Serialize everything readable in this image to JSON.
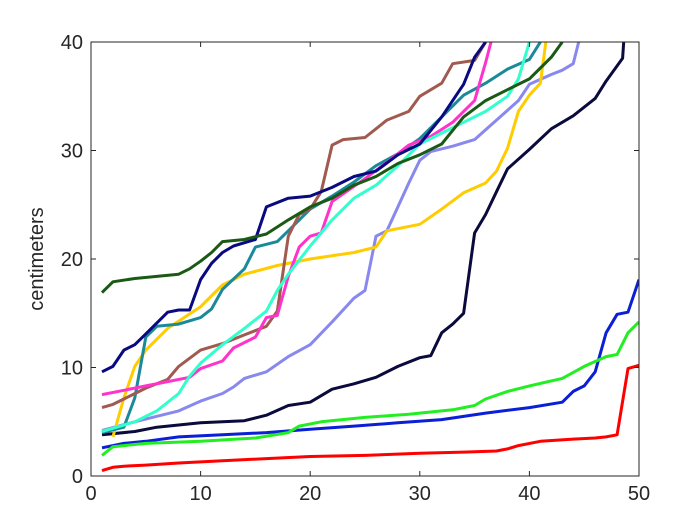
{
  "chart_data": {
    "type": "line",
    "title": "",
    "xlabel": "",
    "ylabel": "centimeters",
    "xlim": [
      0,
      50
    ],
    "ylim": [
      0,
      40
    ],
    "xticks": [
      0,
      10,
      20,
      30,
      40,
      50
    ],
    "yticks": [
      0,
      10,
      20,
      30,
      40
    ],
    "grid": false,
    "series": [
      {
        "color": "#ff0000",
        "points": [
          [
            1,
            0.5
          ],
          [
            2,
            0.8
          ],
          [
            3,
            0.9
          ],
          [
            5,
            1.0
          ],
          [
            8,
            1.2
          ],
          [
            12,
            1.4
          ],
          [
            16,
            1.6
          ],
          [
            20,
            1.8
          ],
          [
            25,
            1.9
          ],
          [
            30,
            2.1
          ],
          [
            34,
            2.2
          ],
          [
            37,
            2.3
          ],
          [
            38,
            2.5
          ],
          [
            39,
            2.8
          ],
          [
            41,
            3.2
          ],
          [
            44,
            3.4
          ],
          [
            46,
            3.5
          ],
          [
            47,
            3.6
          ],
          [
            48,
            3.8
          ],
          [
            49,
            9.9
          ],
          [
            50,
            10.2
          ]
        ]
      },
      {
        "color": "#0a1fd6",
        "points": [
          [
            1,
            2.6
          ],
          [
            3,
            3.0
          ],
          [
            5,
            3.2
          ],
          [
            8,
            3.6
          ],
          [
            12,
            3.8
          ],
          [
            16,
            4.0
          ],
          [
            20,
            4.3
          ],
          [
            24,
            4.6
          ],
          [
            28,
            4.9
          ],
          [
            32,
            5.2
          ],
          [
            36,
            5.8
          ],
          [
            40,
            6.3
          ],
          [
            43,
            6.8
          ],
          [
            44,
            7.8
          ],
          [
            45,
            8.3
          ],
          [
            46,
            9.6
          ],
          [
            47,
            13.2
          ],
          [
            48,
            14.9
          ],
          [
            49,
            15.1
          ],
          [
            50,
            18.1
          ]
        ]
      },
      {
        "color": "#22ee22",
        "points": [
          [
            1,
            1.9
          ],
          [
            2,
            2.7
          ],
          [
            5,
            3.0
          ],
          [
            10,
            3.2
          ],
          [
            15,
            3.5
          ],
          [
            18,
            4.0
          ],
          [
            19,
            4.6
          ],
          [
            21,
            5.0
          ],
          [
            25,
            5.4
          ],
          [
            29,
            5.7
          ],
          [
            33,
            6.1
          ],
          [
            35,
            6.5
          ],
          [
            36,
            7.1
          ],
          [
            38,
            7.8
          ],
          [
            40,
            8.3
          ],
          [
            43,
            9.0
          ],
          [
            45,
            10.1
          ],
          [
            47,
            11.0
          ],
          [
            48,
            11.2
          ],
          [
            49,
            13.2
          ],
          [
            50,
            14.2
          ]
        ]
      },
      {
        "color": "#0a0a3c",
        "points": [
          [
            1,
            3.8
          ],
          [
            4,
            4.1
          ],
          [
            6,
            4.5
          ],
          [
            10,
            4.9
          ],
          [
            14,
            5.1
          ],
          [
            16,
            5.6
          ],
          [
            18,
            6.5
          ],
          [
            20,
            6.8
          ],
          [
            22,
            8.0
          ],
          [
            24,
            8.5
          ],
          [
            26,
            9.1
          ],
          [
            28,
            10.1
          ],
          [
            30,
            10.9
          ],
          [
            31,
            11.1
          ],
          [
            32,
            13.2
          ],
          [
            33,
            14.0
          ],
          [
            34,
            15.0
          ],
          [
            35,
            22.4
          ],
          [
            36,
            24.1
          ],
          [
            37,
            26.2
          ],
          [
            38,
            28.3
          ],
          [
            40,
            30.1
          ],
          [
            42,
            32.0
          ],
          [
            44,
            33.2
          ],
          [
            46,
            34.8
          ],
          [
            47,
            36.4
          ],
          [
            48,
            37.8
          ],
          [
            48.5,
            38.5
          ],
          [
            48.6,
            40
          ]
        ]
      },
      {
        "color": "#8888ee",
        "points": [
          [
            1,
            4.2
          ],
          [
            4,
            5.0
          ],
          [
            6,
            5.5
          ],
          [
            8,
            6.0
          ],
          [
            10,
            6.9
          ],
          [
            12,
            7.6
          ],
          [
            13,
            8.2
          ],
          [
            14,
            9.0
          ],
          [
            16,
            9.6
          ],
          [
            18,
            11.0
          ],
          [
            20,
            12.1
          ],
          [
            22,
            14.2
          ],
          [
            24,
            16.4
          ],
          [
            25,
            17.1
          ],
          [
            26,
            22.1
          ],
          [
            27,
            22.6
          ],
          [
            28,
            24.8
          ],
          [
            29,
            27.0
          ],
          [
            30,
            29.1
          ],
          [
            31,
            29.9
          ],
          [
            33,
            30.4
          ],
          [
            35,
            31.0
          ],
          [
            37,
            32.8
          ],
          [
            39,
            34.6
          ],
          [
            40,
            36.1
          ],
          [
            42,
            37.0
          ],
          [
            43,
            37.4
          ],
          [
            44,
            38.0
          ],
          [
            44.5,
            40
          ]
        ]
      },
      {
        "color": "#ffcc00",
        "points": [
          [
            2,
            3.6
          ],
          [
            3,
            7.2
          ],
          [
            4,
            10.1
          ],
          [
            5,
            11.6
          ],
          [
            7,
            13.6
          ],
          [
            10,
            15.6
          ],
          [
            12,
            17.6
          ],
          [
            14,
            18.6
          ],
          [
            17,
            19.4
          ],
          [
            20,
            20.0
          ],
          [
            24,
            20.6
          ],
          [
            26,
            21.1
          ],
          [
            27,
            22.6
          ],
          [
            30,
            23.2
          ],
          [
            32,
            24.6
          ],
          [
            34,
            26.1
          ],
          [
            36,
            27.0
          ],
          [
            37,
            28.1
          ],
          [
            38,
            30.2
          ],
          [
            39,
            33.6
          ],
          [
            40,
            35.1
          ],
          [
            41,
            36.2
          ],
          [
            41.5,
            40
          ]
        ]
      },
      {
        "color": "#1a8a9a",
        "points": [
          [
            1,
            4.0
          ],
          [
            3,
            4.5
          ],
          [
            4,
            7.2
          ],
          [
            5,
            12.8
          ],
          [
            6,
            13.8
          ],
          [
            8,
            14.0
          ],
          [
            10,
            14.6
          ],
          [
            11,
            15.4
          ],
          [
            12,
            17.2
          ],
          [
            14,
            19.1
          ],
          [
            15,
            21.1
          ],
          [
            17,
            21.6
          ],
          [
            18,
            22.6
          ],
          [
            20,
            24.6
          ],
          [
            22,
            25.8
          ],
          [
            24,
            27.1
          ],
          [
            26,
            28.6
          ],
          [
            28,
            29.7
          ],
          [
            30,
            31.1
          ],
          [
            32,
            33.1
          ],
          [
            34,
            35.1
          ],
          [
            36,
            36.2
          ],
          [
            38,
            37.5
          ],
          [
            40,
            38.4
          ],
          [
            41,
            40
          ]
        ]
      },
      {
        "color": "#a05a50",
        "points": [
          [
            1,
            6.3
          ],
          [
            2,
            6.6
          ],
          [
            3,
            7.1
          ],
          [
            5,
            8.1
          ],
          [
            7,
            8.9
          ],
          [
            8,
            10.1
          ],
          [
            10,
            11.6
          ],
          [
            12,
            12.2
          ],
          [
            14,
            13.0
          ],
          [
            16,
            13.8
          ],
          [
            17,
            15.2
          ],
          [
            18,
            22.1
          ],
          [
            19,
            24.1
          ],
          [
            20,
            24.6
          ],
          [
            21,
            26.2
          ],
          [
            22,
            30.5
          ],
          [
            23,
            31.0
          ],
          [
            25,
            31.2
          ],
          [
            26,
            32.0
          ],
          [
            27,
            32.8
          ],
          [
            29,
            33.6
          ],
          [
            30,
            35.0
          ],
          [
            32,
            36.2
          ],
          [
            33,
            38.0
          ],
          [
            35,
            38.3
          ],
          [
            36,
            40
          ]
        ]
      },
      {
        "color": "#ff33cc",
        "points": [
          [
            1,
            7.5
          ],
          [
            3,
            7.9
          ],
          [
            5,
            8.3
          ],
          [
            7,
            8.7
          ],
          [
            9,
            9.1
          ],
          [
            10,
            9.9
          ],
          [
            12,
            10.6
          ],
          [
            13,
            11.8
          ],
          [
            15,
            12.8
          ],
          [
            16,
            14.6
          ],
          [
            17,
            14.8
          ],
          [
            18,
            18.4
          ],
          [
            19,
            21.1
          ],
          [
            20,
            22.1
          ],
          [
            21,
            22.4
          ],
          [
            22,
            25.3
          ],
          [
            23,
            26.0
          ],
          [
            25,
            27.4
          ],
          [
            27,
            28.9
          ],
          [
            29,
            30.5
          ],
          [
            31,
            31.3
          ],
          [
            33,
            32.6
          ],
          [
            35,
            34.6
          ],
          [
            36,
            38.1
          ],
          [
            36.5,
            40
          ]
        ]
      },
      {
        "color": "#33ffcc",
        "points": [
          [
            1,
            4.1
          ],
          [
            4,
            5.0
          ],
          [
            6,
            6.0
          ],
          [
            8,
            7.6
          ],
          [
            9,
            9.2
          ],
          [
            10,
            10.4
          ],
          [
            12,
            12.1
          ],
          [
            14,
            13.6
          ],
          [
            16,
            15.2
          ],
          [
            17,
            17.1
          ],
          [
            18,
            18.6
          ],
          [
            20,
            21.2
          ],
          [
            22,
            23.6
          ],
          [
            24,
            25.6
          ],
          [
            26,
            26.8
          ],
          [
            28,
            28.6
          ],
          [
            30,
            30.6
          ],
          [
            32,
            31.6
          ],
          [
            34,
            32.6
          ],
          [
            36,
            33.6
          ],
          [
            38,
            35.0
          ],
          [
            39,
            36.6
          ],
          [
            40,
            40
          ]
        ]
      },
      {
        "color": "#0a0a80",
        "points": [
          [
            1,
            9.6
          ],
          [
            2,
            10.1
          ],
          [
            3,
            11.6
          ],
          [
            4,
            12.1
          ],
          [
            5,
            13.1
          ],
          [
            7,
            15.1
          ],
          [
            8,
            15.3
          ],
          [
            9,
            15.3
          ],
          [
            10,
            18.1
          ],
          [
            11,
            19.6
          ],
          [
            12,
            20.6
          ],
          [
            13,
            21.2
          ],
          [
            15,
            21.8
          ],
          [
            16,
            24.8
          ],
          [
            18,
            25.6
          ],
          [
            20,
            25.8
          ],
          [
            22,
            26.6
          ],
          [
            24,
            27.6
          ],
          [
            26,
            28.1
          ],
          [
            28,
            29.6
          ],
          [
            30,
            30.6
          ],
          [
            32,
            33.1
          ],
          [
            34,
            36.1
          ],
          [
            35,
            38.6
          ],
          [
            36,
            40
          ]
        ]
      },
      {
        "color": "#1a5a14",
        "points": [
          [
            1,
            16.9
          ],
          [
            2,
            17.9
          ],
          [
            4,
            18.2
          ],
          [
            6,
            18.4
          ],
          [
            8,
            18.6
          ],
          [
            9,
            19.1
          ],
          [
            10,
            19.8
          ],
          [
            11,
            20.6
          ],
          [
            12,
            21.6
          ],
          [
            14,
            21.8
          ],
          [
            16,
            22.3
          ],
          [
            18,
            23.6
          ],
          [
            20,
            24.8
          ],
          [
            22,
            25.6
          ],
          [
            24,
            26.8
          ],
          [
            26,
            27.6
          ],
          [
            28,
            28.8
          ],
          [
            30,
            29.6
          ],
          [
            32,
            30.6
          ],
          [
            34,
            33.1
          ],
          [
            36,
            34.6
          ],
          [
            38,
            35.6
          ],
          [
            40,
            36.6
          ],
          [
            41,
            37.6
          ],
          [
            42,
            38.6
          ],
          [
            43,
            40
          ]
        ]
      }
    ]
  }
}
